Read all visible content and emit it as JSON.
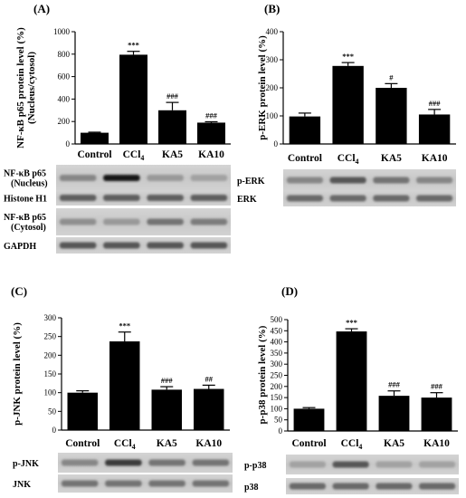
{
  "chart_data": [
    {
      "panel": "(A)",
      "type": "bar",
      "categories": [
        "Control",
        "CCl4",
        "KA5",
        "KA10"
      ],
      "values": [
        100,
        795,
        300,
        190
      ],
      "errors": [
        5,
        30,
        70,
        8
      ],
      "significance": [
        "",
        "***",
        "###",
        "###"
      ],
      "ylabel": "NF-κB p65 protein level (%)",
      "ylabel2": "(Nucleus/cytosol)",
      "ylim": [
        0,
        1000
      ],
      "yticks": [
        0,
        200,
        400,
        600,
        800,
        1000
      ],
      "blots": [
        "NF-κB p65 (Nucleus)",
        "Histone H1",
        "NF-κB p65 (Cytosol)",
        "GAPDH"
      ]
    },
    {
      "panel": "(B)",
      "type": "bar",
      "categories": [
        "Control",
        "CCl4",
        "KA5",
        "KA10"
      ],
      "values": [
        98,
        278,
        200,
        105
      ],
      "errors": [
        12,
        12,
        15,
        18
      ],
      "significance": [
        "",
        "***",
        "#",
        "###"
      ],
      "ylabel": "p-ERK protein level (%)",
      "ylim": [
        0,
        400
      ],
      "yticks": [
        0,
        100,
        200,
        300,
        400
      ],
      "blots": [
        "p-ERK",
        "ERK"
      ]
    },
    {
      "panel": "(C)",
      "type": "bar",
      "categories": [
        "Control",
        "CCl4",
        "KA5",
        "KA10"
      ],
      "values": [
        100,
        237,
        108,
        110
      ],
      "errors": [
        5,
        25,
        8,
        10
      ],
      "significance": [
        "",
        "***",
        "###",
        "##"
      ],
      "ylabel": "p-JNK protein level (%)",
      "ylim": [
        0,
        300
      ],
      "yticks": [
        0,
        50,
        100,
        150,
        200,
        250,
        300
      ],
      "blots": [
        "p-JNK",
        "JNK"
      ]
    },
    {
      "panel": "(D)",
      "type": "bar",
      "categories": [
        "Control",
        "CCl4",
        "KA5",
        "KA10"
      ],
      "values": [
        100,
        447,
        158,
        150
      ],
      "errors": [
        5,
        12,
        22,
        22
      ],
      "significance": [
        "",
        "***",
        "###",
        "###"
      ],
      "ylabel": "p-p38 protein level (%)",
      "ylim": [
        0,
        500
      ],
      "yticks": [
        0,
        50,
        100,
        150,
        200,
        250,
        300,
        350,
        400,
        450,
        500
      ],
      "blots": [
        "p-p38",
        "p38"
      ]
    }
  ]
}
